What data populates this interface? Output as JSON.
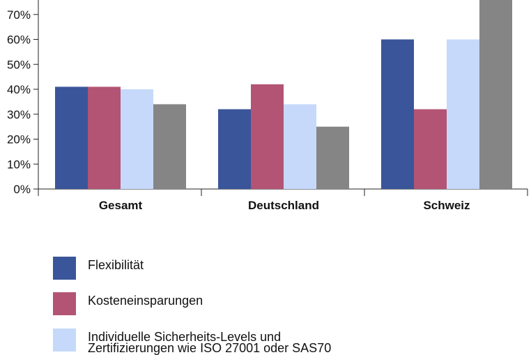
{
  "chart_data": {
    "type": "bar",
    "categories": [
      "Gesamt",
      "Deutschland",
      "Schweiz"
    ],
    "series": [
      {
        "name": "Flexibilität",
        "color": "#3a5599",
        "values": [
          41,
          32,
          60
        ]
      },
      {
        "name": "Kosteneinsparungen",
        "color": "#b35474",
        "values": [
          41,
          42,
          32
        ]
      },
      {
        "name": "Individuelle Sicherheits-Levels und Zertifizierungen wie ISO 27001 oder SAS70",
        "name_lines": [
          "Individuelle Sicherheits-Levels und",
          "Zertifizierungen wie ISO 27001 oder SAS70"
        ],
        "color": "#c6d9fb",
        "values": [
          40,
          34,
          60
        ]
      },
      {
        "name": "",
        "color": "#858585",
        "values": [
          34,
          25,
          80
        ]
      }
    ],
    "y_ticks": [
      "0%",
      "10%",
      "20%",
      "30%",
      "40%",
      "50%",
      "60%",
      "70%"
    ],
    "ylim": [
      0,
      80
    ],
    "grid": false,
    "legend_position": "bottom-left"
  }
}
